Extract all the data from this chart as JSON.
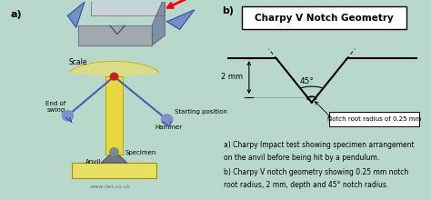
{
  "bg_color": "#b8d8cc",
  "left_bg": "#c8e0d8",
  "right_bg": "#d0ece4",
  "title": "Charpy V Notch Geometry",
  "label_a": "a)",
  "label_b": "b)",
  "dim_label": "2 mm",
  "angle_label": "45°",
  "notch_label": "Notch root radius of 0.25 mm",
  "caption_a": "a) Charpy Impact test showing specimen arrangement",
  "caption_a2": "on the anvil before being hit by a pendulum.",
  "caption_b": "b) Charpy V notch geometry showing 0.25 mm notch",
  "caption_b2": "root radius, 2 mm, depth and 45° notch radius.",
  "watermark": "www.twi.co.uk",
  "panel_split": 0.505,
  "left_inner_bg": "#dce8e0",
  "right_inner_bg": "#cce8dc"
}
